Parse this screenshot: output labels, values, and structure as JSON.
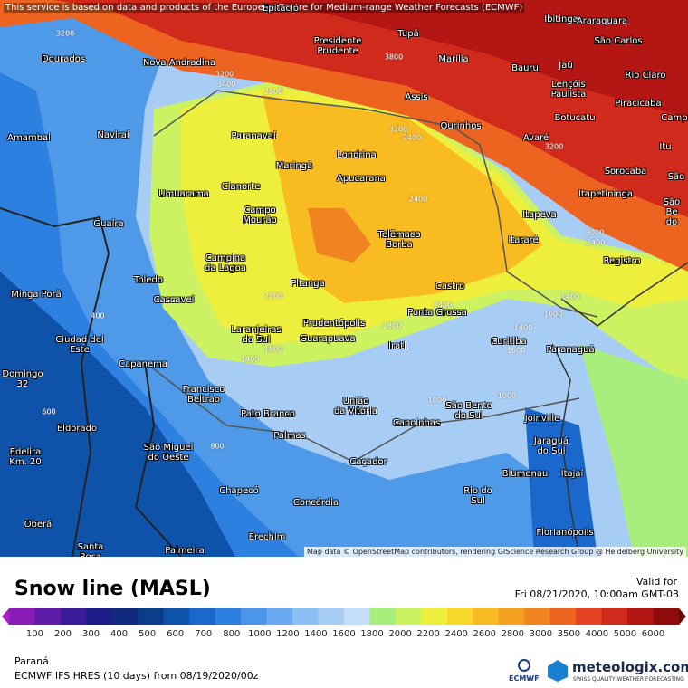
{
  "disclaimer": "This service is based on data and products of the European Centre for Medium-range Weather Forecasts (ECMWF)",
  "map": {
    "attribution": "Map data © OpenStreetMap contributors, rendering GIScience Research Group @ Heidelberg University",
    "cities": [
      "Epitácio",
      "Presidente\nPrudente",
      "Tupã",
      "Marília",
      "Ibitinga",
      "Araraquara",
      "São Carlos",
      "Bauru",
      "Jaú",
      "Lençóis\nPaulista",
      "Rio Claro",
      "Piracicaba",
      "Botucatu",
      "Assis",
      "Ourinhos",
      "Avaré",
      "Itu",
      "Sorocaba",
      "Itapetininga",
      "Itapeva",
      "Itararé",
      "Registro",
      "Dourados",
      "Nova Andradina",
      "Amambai",
      "Naviraí",
      "Paranavaí",
      "Maringá",
      "Londrina",
      "Apucarana",
      "Cianorte",
      "Umuarama",
      "Campo\nMourão",
      "Guaíra",
      "Telêmaco\nBorba",
      "Campina\nda Lagoa",
      "Toledo",
      "Cascavel",
      "Pitanga",
      "Castro",
      "Ponta Grossa",
      "Minga Porã",
      "Prudentópolis",
      "Laranjeiras\ndo Sul",
      "Guarapuava",
      "Curitiba",
      "Paranaguá",
      "Irati",
      "Ciudad del\nEste",
      "Capanema",
      "Domingo\n32",
      "Francisco\nBeltrão",
      "União\nda Vitória",
      "São Bento\ndo Sul",
      "Joinville",
      "Pato Branco",
      "Canoinhas",
      "Eldorado",
      "Palmas",
      "Jaraguá\ndo Sul",
      "São Miguel\ndo Oeste",
      "Edelira\nKm. 20",
      "Caçador",
      "Blumenau",
      "Itajaí",
      "Rio do\nSul",
      "Chapecó",
      "Concórdia",
      "Florianópolis",
      "Oberá",
      "Erechim",
      "Santa\nRosa",
      "Palmeira",
      "Camp",
      "São",
      "São Be\ndo"
    ],
    "contour_labels": [
      "3200",
      "3200",
      "3400",
      "2600",
      "3800",
      "3200",
      "2400",
      "3200",
      "2400",
      "3000",
      "2400",
      "2200",
      "2400",
      "1800",
      "1400",
      "1800",
      "1400",
      "1600",
      "1400",
      "1600",
      "1000",
      "800",
      "600",
      "400",
      "1000"
    ]
  },
  "legend": {
    "title": "Snow line (MASL)",
    "valid_label": "Valid for",
    "valid_time": "Fri 08/21/2020, 10:00am GMT-03",
    "ticks": [
      "100",
      "200",
      "300",
      "400",
      "500",
      "600",
      "700",
      "800",
      "1000",
      "1200",
      "1400",
      "1600",
      "1800",
      "2000",
      "2200",
      "2400",
      "2600",
      "2800",
      "3000",
      "3500",
      "4000",
      "5000",
      "6000"
    ],
    "colors": [
      "#b01cc8",
      "#8a1cb8",
      "#5e1ca8",
      "#3a1c98",
      "#1c1c86",
      "#102a80",
      "#0a3e8a",
      "#0f52aa",
      "#1a68cc",
      "#2e80e0",
      "#4c96ea",
      "#6aaaf0",
      "#8cbef4",
      "#a8cef6",
      "#c2def8",
      "#a8ee7c",
      "#ccf262",
      "#eeee3c",
      "#f8d828",
      "#f8bc22",
      "#f4a020",
      "#f08420",
      "#ec6420",
      "#e44222",
      "#d02a1c",
      "#b41614",
      "#900c0c",
      "#6a0606"
    ]
  },
  "footer": {
    "region": "Paraná",
    "model": "ECMWF IFS HRES (10 days) from 08/19/2020/00z",
    "ecmwf": "ECMWF",
    "brand": "meteologix.com",
    "tagline": "SWISS QUALITY WEATHER FORECASTING"
  }
}
